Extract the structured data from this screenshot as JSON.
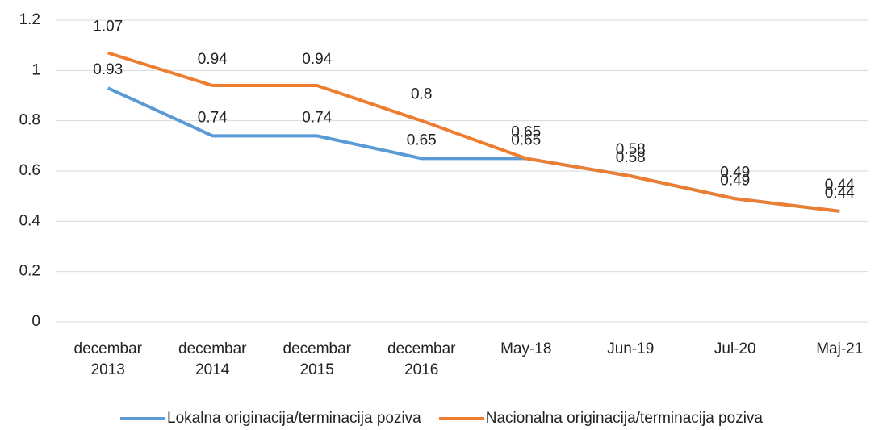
{
  "chart_data": {
    "type": "line",
    "categories": [
      "decembar 2013",
      "decembar 2014",
      "decembar 2015",
      "decembar 2016",
      "May-18",
      "Jun-19",
      "Jul-20",
      "Maj-21"
    ],
    "series": [
      {
        "name": "Lokalna originacija/terminacija poziva",
        "color": "#5b9bd5",
        "values": [
          0.93,
          0.74,
          0.74,
          0.65,
          0.65,
          0.58,
          0.49,
          0.44
        ]
      },
      {
        "name": "Nacionalna originacija/terminacija poziva",
        "color": "#ed7d31",
        "values": [
          1.07,
          0.94,
          0.94,
          0.8,
          0.65,
          0.58,
          0.49,
          0.44
        ]
      }
    ],
    "ylim": [
      0,
      1.2
    ],
    "yticks": [
      0,
      0.2,
      0.4,
      0.6,
      0.8,
      1,
      1.2
    ],
    "grid": true,
    "legend": "bottom"
  }
}
